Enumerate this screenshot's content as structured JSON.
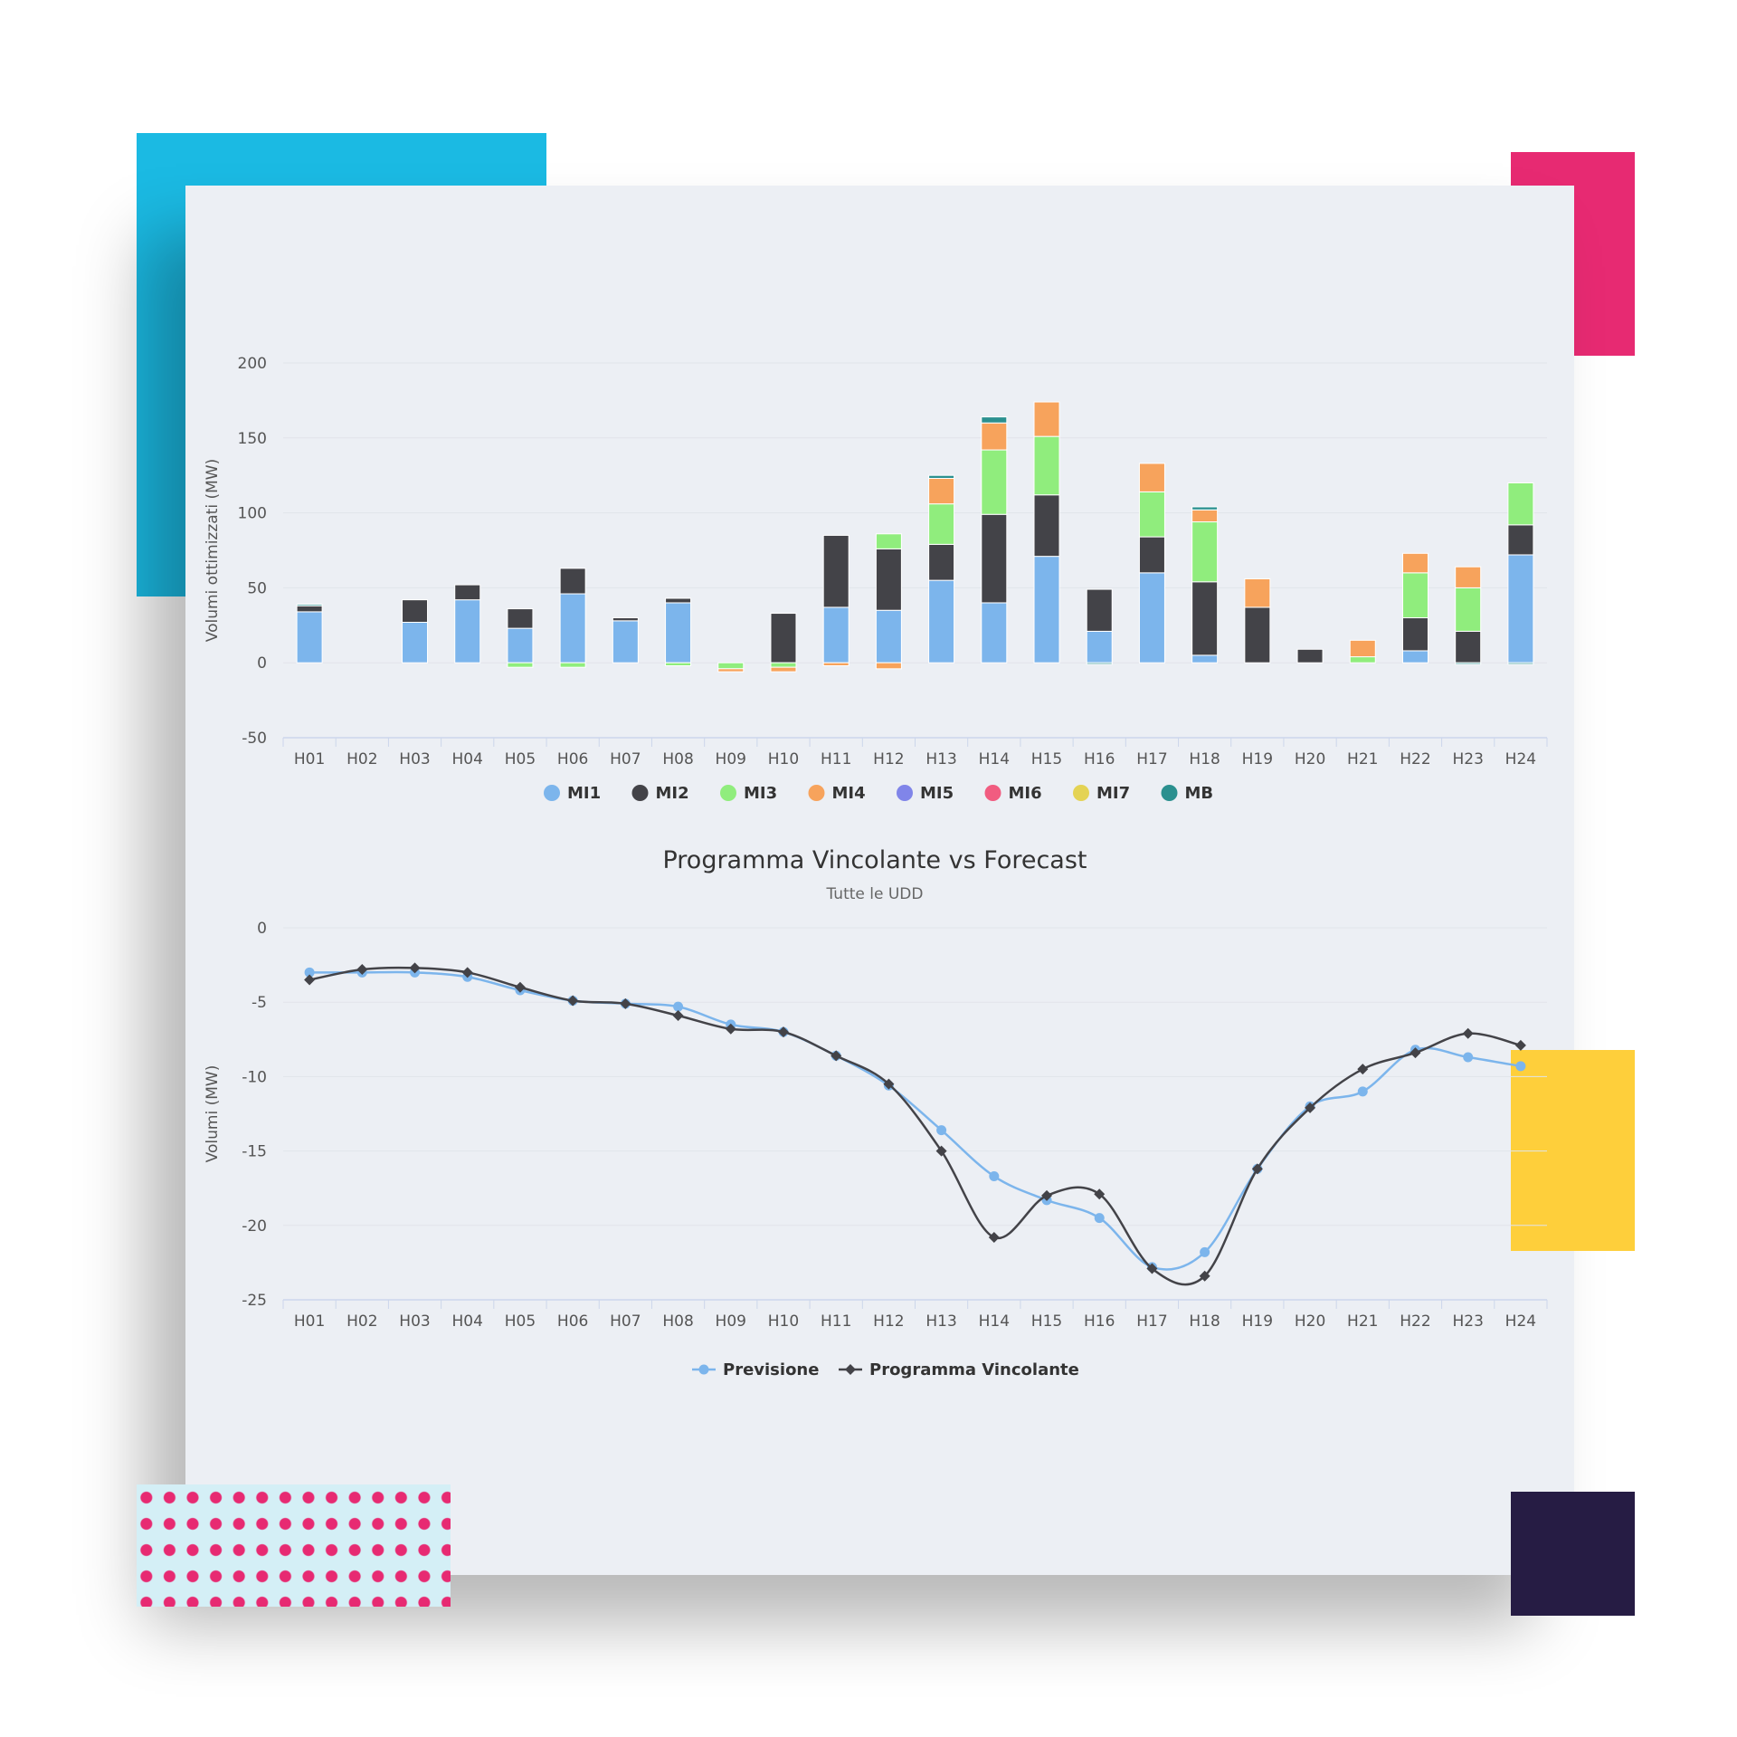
{
  "decor_colors": {
    "cyan": "#1bbae3",
    "pink": "#e72a72",
    "yellow": "#fecf3b",
    "navy": "#261c44",
    "panel": "#eceff4"
  },
  "chart_data": [
    {
      "type": "bar",
      "stacked": true,
      "title": "",
      "xlabel": "",
      "ylabel": "Volumi ottimizzati (MW)",
      "ylim": [
        -50,
        200
      ],
      "yticks": [
        -50,
        0,
        50,
        100,
        150,
        200
      ],
      "categories": [
        "H01",
        "H02",
        "H03",
        "H04",
        "H05",
        "H06",
        "H07",
        "H08",
        "H09",
        "H10",
        "H11",
        "H12",
        "H13",
        "H14",
        "H15",
        "H16",
        "H17",
        "H18",
        "H19",
        "H20",
        "H21",
        "H22",
        "H23",
        "H24"
      ],
      "legend_position": "bottom-center",
      "grid": true,
      "series": [
        {
          "name": "MI1",
          "color": "#7cb5ec",
          "values": [
            34,
            0,
            27,
            42,
            23,
            46,
            28,
            40,
            0,
            0,
            37,
            35,
            55,
            40,
            71,
            21,
            60,
            5,
            0,
            0,
            0,
            8,
            0,
            72
          ]
        },
        {
          "name": "MI2",
          "color": "#434348",
          "values": [
            4,
            0,
            15,
            10,
            13,
            17,
            2,
            3,
            0,
            33,
            48,
            41,
            24,
            59,
            41,
            28,
            24,
            49,
            37,
            9,
            0,
            22,
            21,
            20
          ]
        },
        {
          "name": "MI3",
          "color": "#90ed7d",
          "values": [
            0,
            0,
            0,
            0,
            -3,
            -3,
            0,
            -2,
            -4,
            -3,
            0,
            10,
            27,
            43,
            39,
            0,
            30,
            40,
            0,
            0,
            4,
            30,
            29,
            28
          ]
        },
        {
          "name": "MI4",
          "color": "#f7a35c",
          "values": [
            0,
            0,
            0,
            0,
            0,
            0,
            0,
            0,
            -2,
            -3,
            -2,
            -4,
            17,
            18,
            23,
            0,
            19,
            8,
            19,
            0,
            11,
            13,
            14,
            0
          ]
        },
        {
          "name": "MI5",
          "color": "#8085e9",
          "values": [
            0,
            0,
            0,
            0,
            0,
            0,
            0,
            0,
            0,
            0,
            0,
            0,
            0,
            0,
            0,
            0,
            0,
            0,
            0,
            0,
            0,
            0,
            0,
            0
          ]
        },
        {
          "name": "MI6",
          "color": "#f15c80",
          "values": [
            0,
            0,
            0,
            0,
            0,
            0,
            0,
            0,
            0,
            0,
            0,
            0,
            0,
            0,
            0,
            0,
            0,
            0,
            0,
            0,
            0,
            0,
            0,
            0
          ]
        },
        {
          "name": "MI7",
          "color": "#e4d354",
          "values": [
            0,
            0,
            0,
            0,
            0,
            0,
            0,
            0,
            0,
            0,
            0,
            0,
            0,
            0,
            0,
            0,
            0,
            0,
            0,
            0,
            0,
            0,
            0,
            0
          ]
        },
        {
          "name": "MB",
          "color": "#2b908f",
          "values": [
            1,
            0,
            0,
            0,
            0,
            0,
            0,
            0,
            0,
            0,
            0,
            0,
            2,
            4,
            0,
            -1,
            0,
            2,
            0,
            0,
            0,
            0,
            -1,
            -1
          ]
        }
      ]
    },
    {
      "type": "line",
      "title": "Programma Vincolante vs Forecast",
      "subtitle": "Tutte le UDD",
      "xlabel": "",
      "ylabel": "Volumi (MW)",
      "ylim": [
        -25,
        0
      ],
      "yticks": [
        -25,
        -20,
        -15,
        -10,
        -5,
        0
      ],
      "categories": [
        "H01",
        "H02",
        "H03",
        "H04",
        "H05",
        "H06",
        "H07",
        "H08",
        "H09",
        "H10",
        "H11",
        "H12",
        "H13",
        "H14",
        "H15",
        "H16",
        "H17",
        "H18",
        "H19",
        "H20",
        "H21",
        "H22",
        "H23",
        "H24"
      ],
      "legend_position": "bottom-center",
      "grid": true,
      "series": [
        {
          "name": "Previsione",
          "color": "#7cb5ec",
          "marker": "circle",
          "values": [
            -3.0,
            -3.0,
            -3.0,
            -3.3,
            -4.2,
            -4.9,
            -5.1,
            -5.3,
            -6.5,
            -7.0,
            -8.6,
            -10.6,
            -13.6,
            -16.7,
            -18.3,
            -19.5,
            -22.8,
            -21.8,
            -16.2,
            -12.0,
            -11.0,
            -8.2,
            -8.7,
            -9.3
          ]
        },
        {
          "name": "Programma Vincolante",
          "color": "#434348",
          "marker": "diamond",
          "values": [
            -3.5,
            -2.8,
            -2.7,
            -3.0,
            -4.0,
            -4.9,
            -5.1,
            -5.9,
            -6.8,
            -7.0,
            -8.6,
            -10.5,
            -15.0,
            -20.8,
            -18.0,
            -17.9,
            -22.9,
            -23.4,
            -16.2,
            -12.1,
            -9.5,
            -8.4,
            -7.1,
            -7.9
          ]
        }
      ]
    }
  ]
}
